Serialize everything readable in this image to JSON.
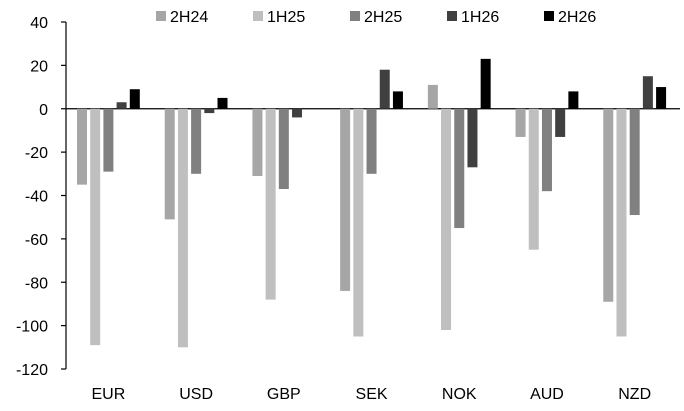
{
  "chart_data": {
    "type": "bar",
    "title": "",
    "xlabel": "",
    "ylabel": "",
    "categories": [
      "EUR",
      "USD",
      "GBP",
      "SEK",
      "NOK",
      "AUD",
      "NZD"
    ],
    "series": [
      {
        "name": "2H24",
        "color": "#a6a6a6",
        "values": [
          -35,
          -51,
          -31,
          -84,
          11,
          -13,
          -89
        ]
      },
      {
        "name": "1H25",
        "color": "#bfbfbf",
        "values": [
          -109,
          -110,
          -88,
          -105,
          -102,
          -65,
          -105
        ]
      },
      {
        "name": "2H25",
        "color": "#808080",
        "values": [
          -29,
          -30,
          -37,
          -30,
          -55,
          -38,
          -49
        ]
      },
      {
        "name": "1H26",
        "color": "#404040",
        "values": [
          3,
          -2,
          -4,
          18,
          -27,
          -13,
          15
        ]
      },
      {
        "name": "2H26",
        "color": "#000000",
        "values": [
          9,
          5,
          0,
          8,
          23,
          8,
          10
        ]
      }
    ],
    "ylim": [
      -120,
      40
    ],
    "yticks": [
      40,
      20,
      0,
      -20,
      -40,
      -60,
      -80,
      -100,
      -120
    ],
    "grid": false,
    "legend_position": "top"
  }
}
